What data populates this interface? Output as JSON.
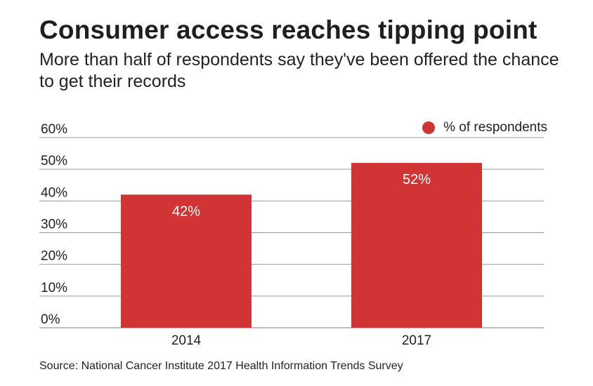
{
  "title": "Consumer access reaches tipping point",
  "subtitle": "More than half of respondents say they've been offered the chance to get their records",
  "source": "Source: National Cancer Institute 2017 Health Information Trends Survey",
  "colors": {
    "bar": "#d03434",
    "grid": "#999999",
    "text": "#222222",
    "label": "#ffffff"
  },
  "chart_data": {
    "type": "bar",
    "categories": [
      "2014",
      "2017"
    ],
    "series": [
      {
        "name": "% of respondents",
        "values": [
          42,
          52
        ]
      }
    ],
    "data_labels": [
      "42%",
      "52%"
    ],
    "y_ticks": [
      "0%",
      "10%",
      "20%",
      "30%",
      "40%",
      "50%",
      "60%"
    ],
    "ylim": [
      0,
      60
    ],
    "grid": true,
    "legend_position": "top-right"
  }
}
